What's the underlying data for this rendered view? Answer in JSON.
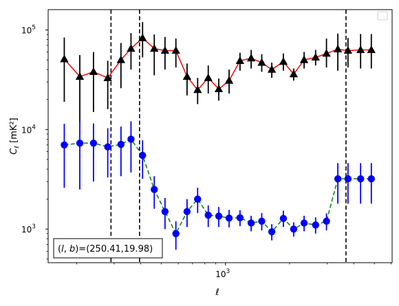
{
  "chart_data": {
    "type": "scatter",
    "xlabel": "ℓ",
    "ylabel": "C_ℓ [mK²]",
    "xscale": "log",
    "yscale": "log",
    "xlim": [
      147,
      6060
    ],
    "ylim": [
      460,
      160000
    ],
    "x_ticks": [
      {
        "value": 1000,
        "base": "10",
        "exp": "3"
      }
    ],
    "y_ticks": [
      {
        "value": 1000,
        "base": "10",
        "exp": "3"
      },
      {
        "value": 10000,
        "base": "10",
        "exp": "4"
      },
      {
        "value": 100000,
        "base": "10",
        "exp": "5"
      }
    ],
    "legend": {
      "placement": "top-right",
      "entries": []
    },
    "annotation": "(l, b)=(250.41,19.98)",
    "vlines": [
      290,
      395,
      3680
    ],
    "series": [
      {
        "marker": "triangle",
        "marker_color": "#000000",
        "line_color": "#ff0000",
        "line_style": "solid",
        "errorbar_color": "#000000",
        "x": [
          175,
          207,
          240,
          280,
          323,
          360,
          408,
          463,
          520,
          585,
          660,
          740,
          830,
          930,
          1040,
          1170,
          1320,
          1480,
          1650,
          1870,
          2090,
          2340,
          2650,
          2980,
          3370,
          3760,
          4310,
          4840
        ],
        "y": [
          51000,
          34000,
          38000,
          33000,
          50000,
          65000,
          83000,
          65000,
          62000,
          62000,
          34000,
          25000,
          33000,
          25500,
          31000,
          49000,
          52000,
          47000,
          40000,
          48000,
          36000,
          50000,
          53000,
          58000,
          64000,
          62000,
          63000,
          63000
        ],
        "yerr_low": [
          32000,
          22000,
          23000,
          17000,
          24000,
          25000,
          30000,
          30000,
          22000,
          20000,
          12000,
          7000,
          10000,
          6000,
          8000,
          10000,
          11000,
          9000,
          7000,
          9000,
          5000,
          9000,
          9000,
          16000,
          25000,
          20000,
          22000,
          22000
        ],
        "yerr_high": [
          33000,
          22000,
          22000,
          16000,
          24000,
          28000,
          37000,
          25000,
          23000,
          20000,
          12000,
          8000,
          11000,
          7000,
          9000,
          10000,
          11000,
          10000,
          7000,
          10000,
          5000,
          10000,
          10000,
          24000,
          28000,
          21000,
          28000,
          28000
        ]
      },
      {
        "marker": "circle",
        "marker_color": "#0000ff",
        "line_color": "#008000",
        "line_style": "dashed",
        "errorbar_color": "#0000ff",
        "x": [
          175,
          207,
          240,
          280,
          323,
          360,
          408,
          463,
          520,
          585,
          660,
          740,
          830,
          930,
          1040,
          1170,
          1320,
          1480,
          1650,
          1870,
          2090,
          2340,
          2650,
          2980,
          3370,
          3760,
          4310,
          4840
        ],
        "y": [
          7000,
          7300,
          7300,
          6700,
          7100,
          8000,
          5500,
          2500,
          1500,
          900,
          1500,
          2000,
          1380,
          1350,
          1290,
          1300,
          1150,
          1200,
          940,
          1280,
          1000,
          1150,
          1100,
          1200,
          3200,
          3200,
          3200,
          3200
        ],
        "yerr_low": [
          4400,
          4800,
          4300,
          3400,
          3700,
          4300,
          2300,
          900,
          500,
          280,
          450,
          550,
          330,
          300,
          250,
          230,
          200,
          230,
          170,
          230,
          160,
          200,
          200,
          230,
          1400,
          1400,
          1400,
          1400
        ],
        "yerr_high": [
          4400,
          5000,
          4200,
          3600,
          3600,
          4100,
          2300,
          900,
          550,
          300,
          500,
          600,
          350,
          320,
          270,
          250,
          210,
          250,
          180,
          250,
          170,
          210,
          210,
          240,
          1400,
          1400,
          1400,
          1400
        ]
      }
    ]
  }
}
